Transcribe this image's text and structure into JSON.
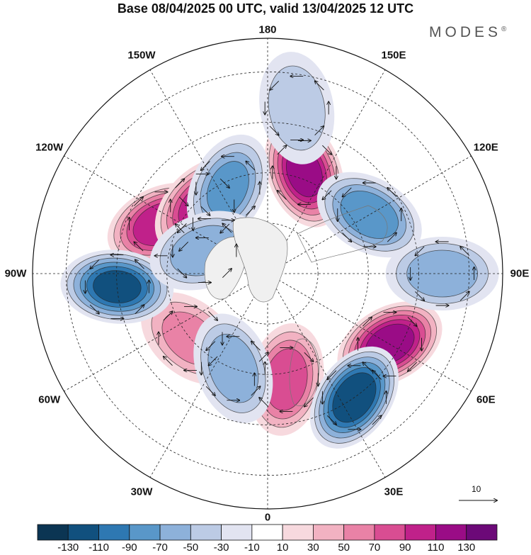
{
  "title": "Base 08/04/2025 00 UTC, valid 13/04/2025 12 UTC",
  "brand": {
    "text": "MODES",
    "mark": "®"
  },
  "longitude_labels": [
    {
      "id": "lon-180",
      "text": "180"
    },
    {
      "id": "lon-150e",
      "text": "150E"
    },
    {
      "id": "lon-120e",
      "text": "120E"
    },
    {
      "id": "lon-90e",
      "text": "90E"
    },
    {
      "id": "lon-60e",
      "text": "60E"
    },
    {
      "id": "lon-30e",
      "text": "30E"
    },
    {
      "id": "lon-0",
      "text": "0"
    },
    {
      "id": "lon-30w",
      "text": "30W"
    },
    {
      "id": "lon-60w",
      "text": "60W"
    },
    {
      "id": "lon-90w",
      "text": "90W"
    },
    {
      "id": "lon-120w",
      "text": "120W"
    },
    {
      "id": "lon-150w",
      "text": "150W"
    }
  ],
  "colorbar": {
    "ticks": [
      "-130",
      "-110",
      "-90",
      "-70",
      "-50",
      "-30",
      "-10",
      "10",
      "30",
      "50",
      "70",
      "90",
      "110",
      "130"
    ],
    "colors": [
      "#0b3553",
      "#11507e",
      "#2e78b2",
      "#5997c9",
      "#8db1da",
      "#bccbe5",
      "#e2e4f1",
      "#ffffff",
      "#f7d9de",
      "#f2b2c2",
      "#e982a6",
      "#d94d92",
      "#c0218a",
      "#9a0c86",
      "#6c0978"
    ]
  },
  "reference_vector": {
    "label": "10"
  },
  "anomaly_centers": [
    {
      "lon": 160,
      "lat": 58,
      "value": 115
    },
    {
      "lon": -115,
      "lat": 55,
      "value": 105
    },
    {
      "lon": -136,
      "lat": 62,
      "value": 100
    },
    {
      "lon": 60,
      "lat": 48,
      "value": 120
    },
    {
      "lon": 10,
      "lat": 58,
      "value": 80
    },
    {
      "lon": -50,
      "lat": 60,
      "value": 50
    },
    {
      "lon": -155,
      "lat": 62,
      "value": -70
    },
    {
      "lon": 170,
      "lat": 40,
      "value": -40
    },
    {
      "lon": 120,
      "lat": 55,
      "value": -80
    },
    {
      "lon": 90,
      "lat": 38,
      "value": -60
    },
    {
      "lon": 35,
      "lat": 45,
      "value": -125
    },
    {
      "lon": -20,
      "lat": 60,
      "value": -60
    },
    {
      "lon": -85,
      "lat": 45,
      "value": -110
    },
    {
      "lon": -110,
      "lat": 70,
      "value": -60
    }
  ]
}
